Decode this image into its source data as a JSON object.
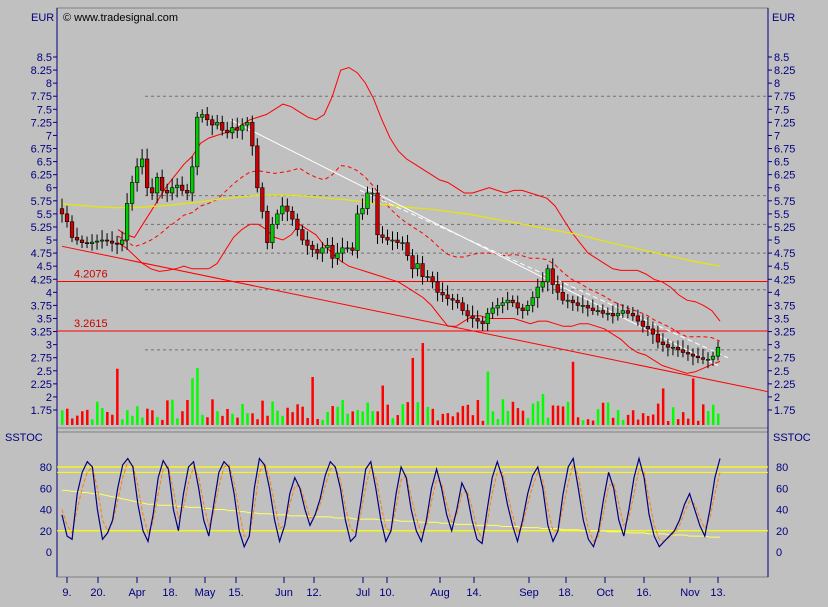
{
  "header": {
    "currency_left": "EUR",
    "currency_right": "EUR",
    "copyright": "© www.tradesignal.com"
  },
  "colors": {
    "background": "#c0c0c0",
    "axis_text": "#000080",
    "bollinger": "#ff0000",
    "moving_average": "#e8e800",
    "trendline": "#ffffff",
    "candle_up": "#00cc00",
    "candle_down": "#cc0000",
    "volume_up": "#00ff00",
    "volume_down": "#ff0000",
    "stoch_fast": "#000080",
    "stoch_slow": "#ff8000",
    "stoch_levels": "#ffff00"
  },
  "chart_data": [
    {
      "type": "candlestick",
      "title": "",
      "ylabel": "EUR",
      "ylim": [
        1.5,
        8.75
      ],
      "yticks": [
        "1.75",
        "2",
        "2.25",
        "2.5",
        "2.75",
        "3",
        "3.25",
        "3.5",
        "3.75",
        "4",
        "4.25",
        "4.5",
        "4.75",
        "5",
        "5.25",
        "5.5",
        "5.75",
        "6",
        "6.25",
        "6.5",
        "6.75",
        "7",
        "7.25",
        "7.5",
        "7.75",
        "8",
        "8.25",
        "8.5"
      ],
      "xticks": [
        "9.",
        "20.",
        "Apr",
        "18.",
        "May",
        "15.",
        "Jun",
        "12.",
        "Jul",
        "10.",
        "Aug",
        "14.",
        "Sep",
        "18.",
        "Oct",
        "16.",
        "Nov",
        "13."
      ],
      "horizontal_lines": [
        {
          "label": "4.2076",
          "value": 4.2076
        },
        {
          "label": "3.2615",
          "value": 3.2615
        }
      ],
      "close": [
        5.5,
        5.35,
        5.05,
        5.0,
        4.95,
        4.93,
        4.96,
        4.98,
        5.0,
        4.98,
        4.94,
        4.92,
        5.0,
        5.7,
        6.1,
        6.4,
        6.55,
        6.0,
        5.9,
        6.2,
        5.95,
        5.9,
        6.0,
        6.05,
        5.95,
        5.9,
        6.4,
        7.35,
        7.4,
        7.3,
        7.2,
        7.25,
        7.1,
        7.05,
        7.15,
        7.1,
        7.2,
        7.25,
        6.8,
        6.0,
        5.55,
        4.95,
        5.3,
        5.5,
        5.65,
        5.55,
        5.4,
        5.2,
        5.0,
        4.9,
        4.82,
        4.75,
        4.85,
        4.9,
        4.65,
        4.75,
        4.85,
        4.85,
        4.8,
        5.5,
        5.6,
        5.9,
        5.9,
        5.1,
        5.05,
        5.0,
        5.0,
        4.95,
        4.95,
        4.7,
        4.45,
        4.55,
        4.3,
        4.3,
        4.2,
        4.0,
        3.95,
        3.88,
        3.85,
        3.8,
        3.65,
        3.55,
        3.5,
        3.45,
        3.4,
        3.6,
        3.7,
        3.75,
        3.8,
        3.85,
        3.8,
        3.7,
        3.65,
        3.75,
        3.9,
        4.1,
        4.2,
        4.45,
        4.15,
        4.0,
        3.85,
        3.85,
        3.8,
        3.75,
        3.75,
        3.7,
        3.65,
        3.65,
        3.6,
        3.6,
        3.55,
        3.6,
        3.65,
        3.6,
        3.55,
        3.45,
        3.35,
        3.3,
        3.2,
        3.05,
        3.0,
        2.95,
        2.95,
        2.9,
        2.85,
        2.82,
        2.78,
        2.75,
        2.72,
        2.72,
        2.78,
        2.95
      ],
      "open_offset_note": "",
      "bollinger_upper": [
        5.2,
        5.1,
        5.05,
        5.3,
        5.55,
        5.8,
        6.05,
        6.25,
        6.45,
        6.6,
        6.85,
        6.95,
        7.0,
        7.05,
        7.1,
        7.2,
        7.3,
        7.35,
        7.4,
        7.5,
        7.6,
        7.55,
        7.45,
        7.35,
        7.3,
        7.4,
        7.75,
        8.25,
        8.3,
        8.2,
        8.0,
        7.7,
        7.3,
        6.95,
        6.7,
        6.55,
        6.45,
        6.35,
        6.25,
        6.15,
        6.1,
        6.0,
        5.9,
        5.9,
        5.95,
        6.0,
        5.95,
        5.9,
        5.95,
        5.95,
        5.9,
        5.85,
        5.8,
        5.65,
        5.4,
        5.15,
        4.95,
        4.75,
        4.65,
        4.55,
        4.45,
        4.42,
        4.42,
        4.42,
        4.35,
        4.25,
        4.2,
        4.1,
        3.95,
        3.85,
        3.82,
        3.75,
        3.65,
        3.45
      ],
      "bollinger_lower": [
        4.95,
        4.85,
        4.7,
        4.55,
        4.45,
        4.4,
        4.42,
        4.45,
        4.5,
        4.45,
        4.45,
        4.45,
        4.55,
        4.8,
        5.05,
        5.2,
        5.3,
        5.3,
        5.2,
        5.05,
        5.0,
        5.1,
        5.3,
        5.2,
        5.1,
        4.9,
        4.75,
        4.6,
        4.5,
        4.45,
        4.4,
        4.35,
        4.3,
        4.25,
        4.2,
        4.1,
        4.0,
        3.9,
        3.75,
        3.55,
        3.35,
        3.35,
        3.45,
        3.55,
        3.55,
        3.5,
        3.5,
        3.5,
        3.5,
        3.45,
        3.4,
        3.45,
        3.45,
        3.4,
        3.35,
        3.35,
        3.4,
        3.4,
        3.35,
        3.3,
        3.2,
        3.1,
        2.95,
        2.85,
        2.8,
        2.7,
        2.6,
        2.55,
        2.5,
        2.45,
        2.48,
        2.55,
        2.62,
        2.68
      ],
      "moving_average": [
        5.7,
        5.67,
        5.65,
        5.63,
        5.62,
        5.62,
        5.63,
        5.65,
        5.67,
        5.7,
        5.73,
        5.77,
        5.8,
        5.83,
        5.85,
        5.86,
        5.86,
        5.85,
        5.83,
        5.8,
        5.78,
        5.75,
        5.72,
        5.68,
        5.65,
        5.62,
        5.6,
        5.57,
        5.53,
        5.5,
        5.45,
        5.4,
        5.35,
        5.3,
        5.25,
        5.2,
        5.15,
        5.1,
        5.03,
        4.96,
        4.9,
        4.84,
        4.78,
        4.72,
        4.66,
        4.6,
        4.55,
        4.5
      ],
      "trendline_points": [
        [
          4.88,
          0
        ],
        [
          2.1,
          1
        ]
      ],
      "volume_unit": "relative"
    },
    {
      "type": "line",
      "title": "SSTOC",
      "ylabel": "SSTOC",
      "ylim": [
        -10,
        95
      ],
      "yticks": [
        "0",
        "20",
        "40",
        "60",
        "80"
      ],
      "levels": [
        20,
        80
      ],
      "series": [
        {
          "values": [
            35,
            15,
            12,
            55,
            75,
            85,
            80,
            40,
            12,
            18,
            30,
            60,
            82,
            88,
            80,
            45,
            20,
            10,
            35,
            70,
            86,
            78,
            40,
            20,
            55,
            80,
            85,
            60,
            30,
            15,
            45,
            75,
            85,
            80,
            55,
            20,
            5,
            15,
            60,
            88,
            82,
            60,
            30,
            10,
            25,
            55,
            70,
            60,
            40,
            25,
            35,
            50,
            72,
            85,
            80,
            60,
            30,
            10,
            15,
            45,
            78,
            85,
            60,
            30,
            10,
            20,
            55,
            80,
            70,
            40,
            20,
            10,
            30,
            60,
            78,
            60,
            35,
            20,
            40,
            65,
            55,
            30,
            12,
            8,
            40,
            70,
            85,
            70,
            45,
            25,
            10,
            30,
            55,
            72,
            80,
            60,
            25,
            10,
            20,
            55,
            80,
            88,
            60,
            30,
            12,
            5,
            20,
            50,
            75,
            60,
            30,
            15,
            40,
            70,
            88,
            70,
            35,
            15,
            5,
            10,
            15,
            20,
            30,
            45,
            55,
            40,
            25,
            15,
            40,
            70,
            88
          ]
        },
        {
          "values": [
            40,
            25,
            18,
            40,
            60,
            75,
            80,
            60,
            30,
            20,
            28,
            48,
            70,
            85,
            82,
            62,
            35,
            18,
            28,
            55,
            78,
            80,
            58,
            32,
            42,
            65,
            80,
            70,
            45,
            25,
            38,
            62,
            80,
            82,
            65,
            38,
            15,
            15,
            42,
            75,
            84,
            70,
            45,
            22,
            25,
            45,
            62,
            62,
            48,
            32,
            34,
            45,
            62,
            78,
            80,
            68,
            42,
            22,
            18,
            35,
            62,
            80,
            70,
            45,
            22,
            20,
            42,
            68,
            72,
            52,
            32,
            18,
            25,
            48,
            68,
            65,
            45,
            28,
            35,
            55,
            58,
            42,
            22,
            12,
            28,
            55,
            75,
            75,
            55,
            35,
            18,
            25,
            45,
            62,
            75,
            68,
            40,
            20,
            20,
            42,
            65,
            82,
            72,
            45,
            22,
            10,
            15,
            38,
            62,
            65,
            45,
            25,
            32,
            55,
            78,
            75,
            50,
            25,
            12,
            10,
            14,
            18,
            25,
            38,
            48,
            45,
            32,
            22,
            32,
            55,
            75
          ]
        },
        {
          "values": [
            58,
            58,
            57,
            57,
            56,
            56,
            55,
            55,
            54,
            53,
            52,
            51,
            50,
            49,
            48,
            47,
            46,
            45,
            45,
            44,
            44,
            44,
            44,
            43,
            43,
            42,
            42,
            42,
            41,
            41,
            40,
            40,
            40,
            39,
            39,
            38,
            38,
            37,
            37,
            36,
            36,
            36,
            35,
            35,
            35,
            34,
            34,
            34,
            34,
            33,
            33,
            33,
            33,
            33,
            32,
            32,
            32,
            32,
            31,
            31,
            31,
            31,
            31,
            30,
            30,
            30,
            30,
            29,
            29,
            29,
            29,
            28,
            28,
            28,
            28,
            27,
            27,
            27,
            26,
            26,
            26,
            26,
            25,
            25,
            25,
            25,
            25,
            24,
            24,
            24,
            24,
            23,
            23,
            23,
            23,
            22,
            22,
            22,
            22,
            21,
            21,
            21,
            21,
            20,
            20,
            20,
            20,
            20,
            19,
            19,
            19,
            19,
            18,
            18,
            18,
            18,
            17,
            17,
            17,
            17,
            16,
            16,
            16,
            16,
            15,
            15,
            15,
            15,
            14,
            14,
            14
          ]
        }
      ]
    }
  ]
}
